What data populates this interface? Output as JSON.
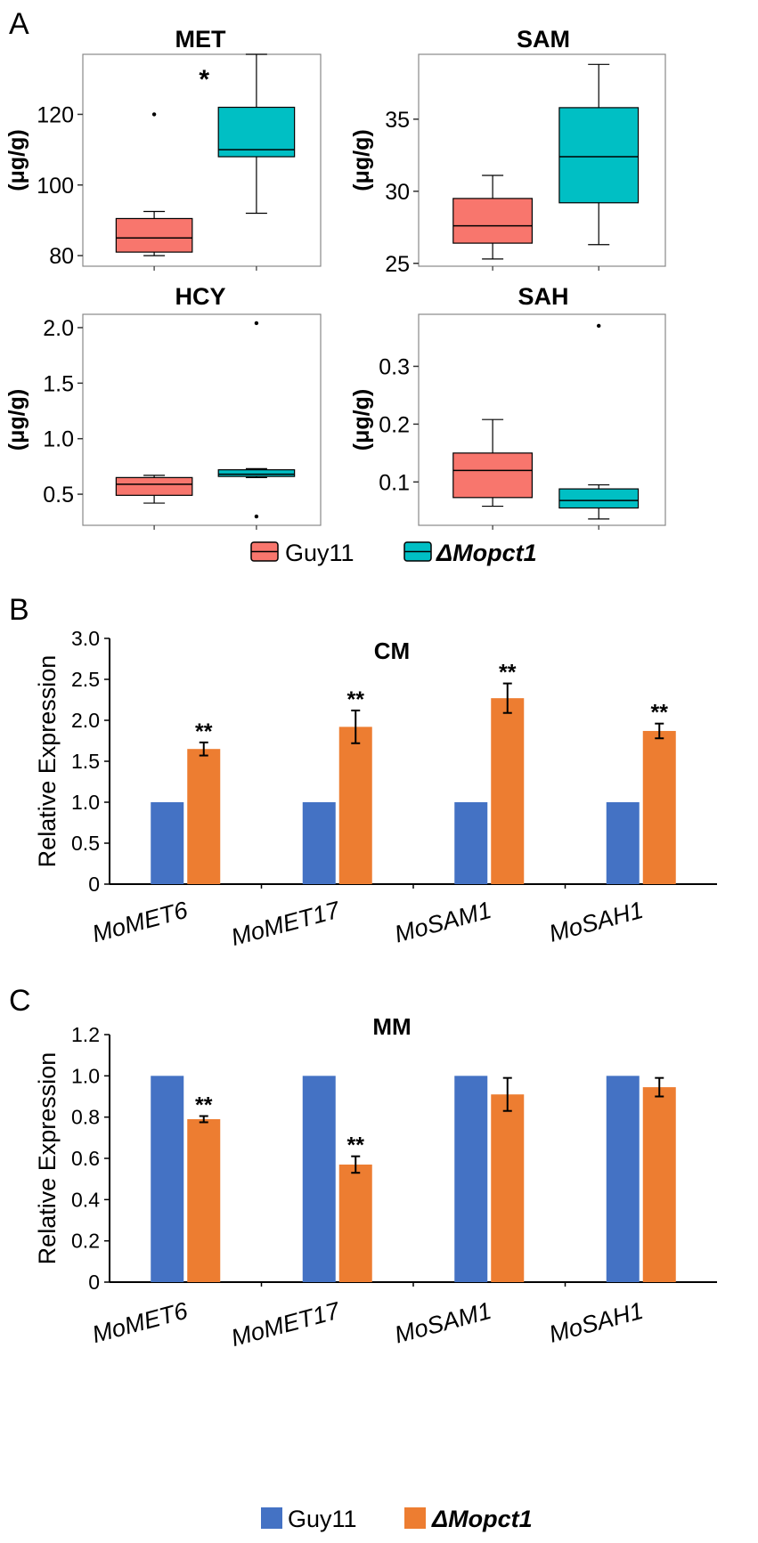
{
  "panel_labels": [
    "A",
    "B",
    "C"
  ],
  "colors": {
    "guy11_box": "#f8766d",
    "mutant_box": "#00bfc4",
    "guy11_bar": "#4472c4",
    "mutant_bar": "#ed7d31",
    "axis": "#000000",
    "frame": "#888888"
  },
  "legend_a": {
    "guy11": "Guy11",
    "mutant": "ΔMopct1"
  },
  "legend_c": {
    "guy11": "Guy11",
    "mutant": "ΔMopct1"
  },
  "chart_data": [
    {
      "type": "box",
      "title": "MET",
      "ylabel": "(μg/g)",
      "ylim": [
        77,
        137
      ],
      "yticks": [
        80,
        100,
        120
      ],
      "significance": "*",
      "groups": [
        {
          "name": "Guy11",
          "whisker_low": 80,
          "q1": 81,
          "median": 85,
          "q3": 90.5,
          "whisker_high": 92.5,
          "outliers": [
            120
          ]
        },
        {
          "name": "ΔMopct1",
          "whisker_low": 92,
          "q1": 108,
          "median": 110,
          "q3": 122,
          "whisker_high": 137,
          "outliers": []
        }
      ]
    },
    {
      "type": "box",
      "title": "SAM",
      "ylabel": "(μg/g)",
      "ylim": [
        24.8,
        39.5
      ],
      "yticks": [
        25,
        30,
        35
      ],
      "groups": [
        {
          "name": "Guy11",
          "whisker_low": 25.3,
          "q1": 26.4,
          "median": 27.6,
          "q3": 29.5,
          "whisker_high": 31.1,
          "outliers": []
        },
        {
          "name": "ΔMopct1",
          "whisker_low": 26.3,
          "q1": 29.2,
          "median": 32.4,
          "q3": 35.8,
          "whisker_high": 38.8,
          "outliers": []
        }
      ]
    },
    {
      "type": "box",
      "title": "HCY",
      "ylabel": "(μg/g)",
      "ylim": [
        0.22,
        2.12
      ],
      "yticks": [
        0.5,
        1.0,
        1.5,
        2.0
      ],
      "ytick_labels": [
        "0.5",
        "1.0",
        "1.5",
        "2.0"
      ],
      "groups": [
        {
          "name": "Guy11",
          "whisker_low": 0.42,
          "q1": 0.49,
          "median": 0.59,
          "q3": 0.65,
          "whisker_high": 0.67,
          "outliers": []
        },
        {
          "name": "ΔMopct1",
          "whisker_low": 0.65,
          "q1": 0.66,
          "median": 0.68,
          "q3": 0.72,
          "whisker_high": 0.73,
          "outliers": [
            0.3,
            2.04
          ]
        }
      ]
    },
    {
      "type": "box",
      "title": "SAH",
      "ylabel": "(μg/g)",
      "ylim": [
        0.025,
        0.39
      ],
      "yticks": [
        0.1,
        0.2,
        0.3
      ],
      "ytick_labels": [
        "0.1",
        "0.2",
        "0.3"
      ],
      "groups": [
        {
          "name": "Guy11",
          "whisker_low": 0.058,
          "q1": 0.073,
          "median": 0.12,
          "q3": 0.15,
          "whisker_high": 0.208,
          "outliers": []
        },
        {
          "name": "ΔMopct1",
          "whisker_low": 0.036,
          "q1": 0.055,
          "median": 0.068,
          "q3": 0.088,
          "whisker_high": 0.095,
          "outliers": [
            0.37
          ]
        }
      ]
    },
    {
      "type": "bar",
      "title": "CM",
      "ylabel": "Relative Expression",
      "ylim": [
        0,
        3.0
      ],
      "yticks": [
        0,
        0.5,
        1.0,
        1.5,
        2.0,
        2.5,
        3.0
      ],
      "ytick_labels": [
        "0",
        "0.5",
        "1.0",
        "1.5",
        "2.0",
        "2.5",
        "3.0"
      ],
      "categories": [
        "MoMET6",
        "MoMET17",
        "MoSAM1",
        "MoSAH1"
      ],
      "series": [
        {
          "name": "Guy11",
          "values": [
            1.0,
            1.0,
            1.0,
            1.0
          ],
          "errors": [
            0.005,
            0.005,
            0.005,
            0.005
          ]
        },
        {
          "name": "ΔMopct1",
          "values": [
            1.65,
            1.92,
            2.27,
            1.87
          ],
          "errors": [
            0.08,
            0.2,
            0.18,
            0.09
          ]
        }
      ],
      "significance": [
        "**",
        "**",
        "**",
        "**"
      ]
    },
    {
      "type": "bar",
      "title": "MM",
      "ylabel": "Relative Expression",
      "ylim": [
        0,
        1.2
      ],
      "yticks": [
        0,
        0.2,
        0.4,
        0.6,
        0.8,
        1.0,
        1.2
      ],
      "ytick_labels": [
        "0",
        "0.2",
        "0.4",
        "0.6",
        "0.8",
        "1.0",
        "1.2"
      ],
      "categories": [
        "MoMET6",
        "MoMET17",
        "MoSAM1",
        "MoSAH1"
      ],
      "series": [
        {
          "name": "Guy11",
          "values": [
            1.0,
            1.0,
            1.0,
            1.0
          ],
          "errors": [
            0.002,
            0.002,
            0.002,
            0.002
          ]
        },
        {
          "name": "ΔMopct1",
          "values": [
            0.79,
            0.57,
            0.91,
            0.945
          ],
          "errors": [
            0.015,
            0.04,
            0.08,
            0.045
          ]
        }
      ],
      "significance": [
        "**",
        "**",
        "",
        ""
      ]
    }
  ]
}
